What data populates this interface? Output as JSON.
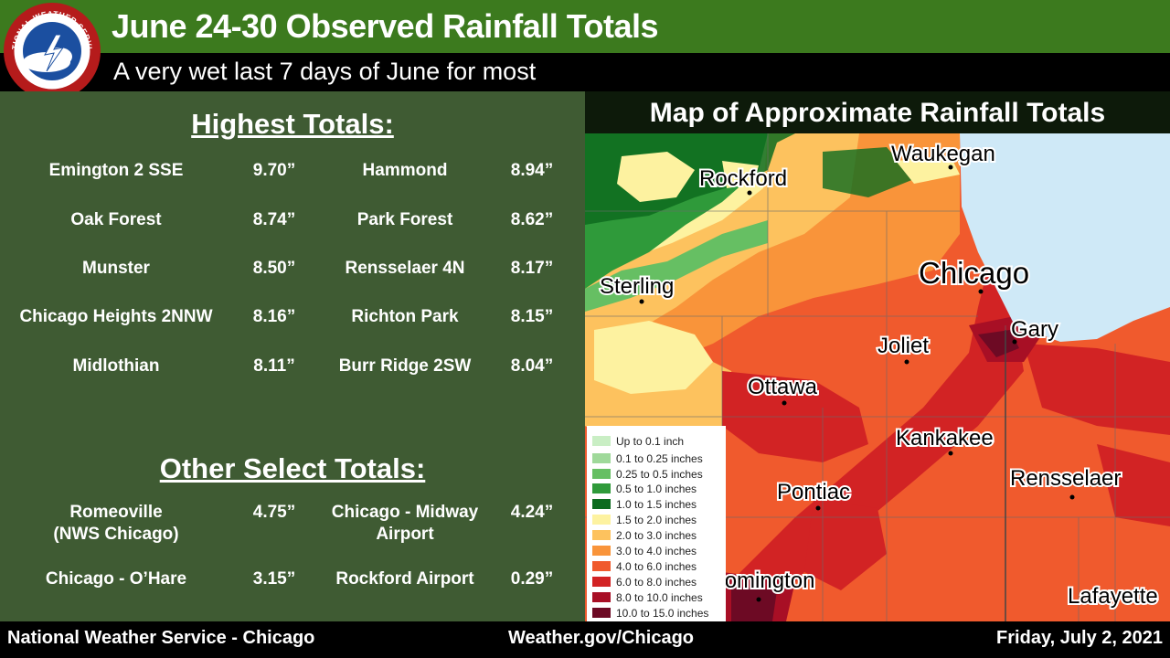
{
  "header": {
    "title": "June 24-30 Observed Rainfall Totals",
    "subtitle": "A very wet last 7 days of June for most",
    "logo_text": "NATIONAL WEATHER SERVICE"
  },
  "highest": {
    "heading": "Highest Totals:",
    "rows": [
      {
        "left_site": "Emington 2 SSE",
        "left_val": "9.70”",
        "right_site": "Hammond",
        "right_val": "8.94”"
      },
      {
        "left_site": "Oak Forest",
        "left_val": "8.74”",
        "right_site": "Park Forest",
        "right_val": "8.62”"
      },
      {
        "left_site": "Munster",
        "left_val": "8.50”",
        "right_site": "Rensselaer 4N",
        "right_val": "8.17”"
      },
      {
        "left_site": "Chicago Heights 2NNW",
        "left_val": "8.16”",
        "right_site": "Richton Park",
        "right_val": "8.15”"
      },
      {
        "left_site": "Midlothian",
        "left_val": "8.11”",
        "right_site": "Burr Ridge 2SW",
        "right_val": "8.04”"
      }
    ]
  },
  "other": {
    "heading": "Other Select Totals:",
    "rows": [
      {
        "left_site_1": "Romeoville",
        "left_site_2": "(NWS Chicago)",
        "left_val": "4.75”",
        "right_site_1": "Chicago - Midway",
        "right_site_2": "Airport",
        "right_val": "4.24”"
      },
      {
        "left_site_1": "Chicago - O’Hare",
        "left_site_2": "",
        "left_val": "3.15”",
        "right_site_1": "Rockford Airport",
        "right_site_2": "",
        "right_val": "0.29”"
      }
    ]
  },
  "map": {
    "title": "Map of Approximate Rainfall Totals",
    "cities": [
      "Waukegan",
      "Rockford",
      "Chicago",
      "Sterling",
      "Gary",
      "Joliet",
      "Ottawa",
      "Kankakee",
      "Rensselaer",
      "Pontiac",
      "Bloomington",
      "Lafayette"
    ],
    "lake_color": "#cfe9f7"
  },
  "legend": [
    {
      "label": "Up to 0.1 inch",
      "color": "#c9eec4"
    },
    {
      "label": "0.1 to 0.25 inches",
      "color": "#9fd99a"
    },
    {
      "label": "0.25 to 0.5 inches",
      "color": "#66bf63"
    },
    {
      "label": "0.5 to 1.0 inches",
      "color": "#2f9a3a"
    },
    {
      "label": "1.0 to 1.5 inches",
      "color": "#0d6b1f"
    },
    {
      "label": "1.5 to 2.0 inches",
      "color": "#fdf2a0"
    },
    {
      "label": "2.0 to 3.0 inches",
      "color": "#fdc25e"
    },
    {
      "label": "3.0 to 4.0 inches",
      "color": "#f9943a"
    },
    {
      "label": "4.0 to 6.0 inches",
      "color": "#f05a2d"
    },
    {
      "label": "6.0 to 8.0 inches",
      "color": "#d22324"
    },
    {
      "label": "8.0 to 10.0 inches",
      "color": "#a80f25"
    },
    {
      "label": "10.0 to 15.0 inches",
      "color": "#6d0a24"
    }
  ],
  "footer": {
    "left": "National Weather Service - Chicago",
    "center": "Weather.gov/Chicago",
    "right": "Friday, July 2, 2021"
  },
  "colors": {
    "header_green": "#3c7a1e",
    "panel_green": "#3f5b33"
  }
}
